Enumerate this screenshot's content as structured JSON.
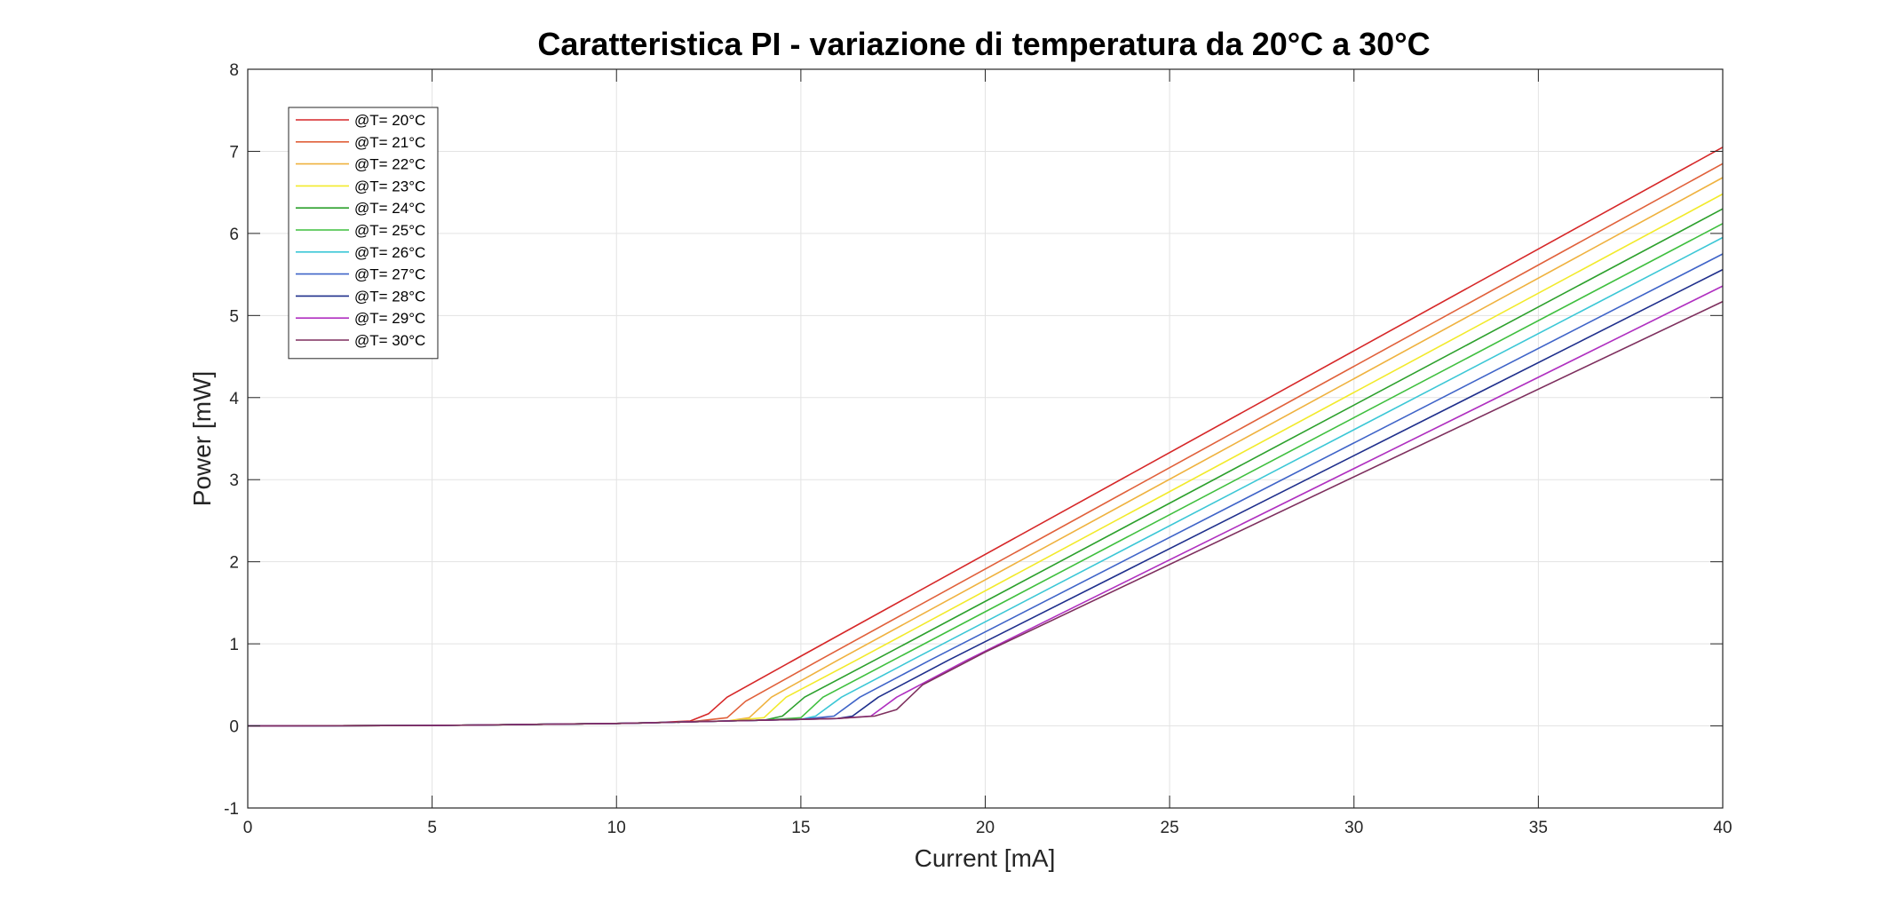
{
  "chart_data": {
    "type": "line",
    "title": "Caratteristica PI - variazione di temperatura da 20°C a 30°C",
    "xlabel": "Current [mA]",
    "ylabel": "Power [mW]",
    "xlim": [
      0,
      40
    ],
    "ylim": [
      -1,
      8
    ],
    "xticks": [
      0,
      5,
      10,
      15,
      20,
      25,
      30,
      35,
      40
    ],
    "yticks": [
      -1,
      0,
      1,
      2,
      3,
      4,
      5,
      6,
      7,
      8
    ],
    "grid": true,
    "legend_position": "top-left",
    "series": [
      {
        "name": "@T= 20°C",
        "color": "#d62728",
        "x": [
          0,
          5,
          10,
          11,
          12,
          12.5,
          13,
          15,
          40
        ],
        "y": [
          0,
          0.005,
          0.03,
          0.04,
          0.06,
          0.15,
          0.35,
          0.85,
          7.05
        ]
      },
      {
        "name": "@T= 21°C",
        "color": "#e0603a",
        "x": [
          0,
          5,
          10,
          11,
          12,
          13,
          13.5,
          15.5,
          40
        ],
        "y": [
          0,
          0.005,
          0.03,
          0.04,
          0.05,
          0.1,
          0.3,
          0.8,
          6.85
        ]
      },
      {
        "name": "@T= 22°C",
        "color": "#efb23f",
        "x": [
          0,
          5,
          10,
          11,
          12,
          13,
          13.6,
          14.2,
          16,
          40
        ],
        "y": [
          0,
          0.005,
          0.03,
          0.04,
          0.05,
          0.06,
          0.1,
          0.35,
          0.8,
          6.68
        ]
      },
      {
        "name": "@T= 23°C",
        "color": "#f2ea2b",
        "x": [
          0,
          5,
          10,
          11,
          12,
          13,
          14,
          14.6,
          16.5,
          40
        ],
        "y": [
          0,
          0.005,
          0.03,
          0.04,
          0.05,
          0.06,
          0.1,
          0.35,
          0.8,
          6.48
        ]
      },
      {
        "name": "@T= 24°C",
        "color": "#2ca02c",
        "x": [
          0,
          5,
          10,
          11,
          12,
          13,
          14,
          14.5,
          15.1,
          17,
          40
        ],
        "y": [
          0,
          0.005,
          0.03,
          0.04,
          0.05,
          0.06,
          0.07,
          0.12,
          0.35,
          0.8,
          6.3
        ]
      },
      {
        "name": "@T= 25°C",
        "color": "#3fbf3f",
        "x": [
          0,
          5,
          10,
          11,
          12,
          13,
          14,
          15,
          15.6,
          17.5,
          40
        ],
        "y": [
          0,
          0.005,
          0.03,
          0.04,
          0.05,
          0.06,
          0.07,
          0.1,
          0.35,
          0.8,
          6.12
        ]
      },
      {
        "name": "@T= 26°C",
        "color": "#3cc7d6",
        "x": [
          0,
          5,
          10,
          11,
          12,
          13,
          14,
          15,
          15.4,
          16.1,
          18,
          40
        ],
        "y": [
          0,
          0.005,
          0.03,
          0.04,
          0.05,
          0.06,
          0.07,
          0.08,
          0.12,
          0.35,
          0.8,
          5.95
        ]
      },
      {
        "name": "@T= 27°C",
        "color": "#3f64c8",
        "x": [
          0,
          5,
          10,
          11,
          12,
          13,
          14,
          15,
          15.9,
          16.6,
          18.5,
          40
        ],
        "y": [
          0,
          0.005,
          0.03,
          0.04,
          0.05,
          0.06,
          0.07,
          0.08,
          0.12,
          0.35,
          0.8,
          5.75
        ]
      },
      {
        "name": "@T= 28°C",
        "color": "#1f2f8c",
        "x": [
          0,
          5,
          10,
          11,
          12,
          13,
          14,
          15,
          16,
          16.4,
          17.1,
          19,
          40
        ],
        "y": [
          0,
          0.005,
          0.03,
          0.04,
          0.05,
          0.06,
          0.07,
          0.08,
          0.09,
          0.12,
          0.35,
          0.8,
          5.56
        ]
      },
      {
        "name": "@T= 29°C",
        "color": "#b030c0",
        "x": [
          0,
          5,
          10,
          11,
          12,
          13,
          14,
          15,
          16,
          16.9,
          17.6,
          19.5,
          40
        ],
        "y": [
          0,
          0.005,
          0.03,
          0.04,
          0.05,
          0.06,
          0.07,
          0.08,
          0.09,
          0.12,
          0.35,
          0.8,
          5.36
        ]
      },
      {
        "name": "@T= 30°C",
        "color": "#7e2f5e",
        "x": [
          0,
          5,
          10,
          11,
          12,
          13,
          14,
          15,
          16,
          17,
          17.6,
          18.3,
          20,
          40
        ],
        "y": [
          0,
          0.005,
          0.03,
          0.04,
          0.05,
          0.06,
          0.07,
          0.08,
          0.09,
          0.12,
          0.2,
          0.5,
          0.9,
          5.17
        ]
      }
    ]
  }
}
